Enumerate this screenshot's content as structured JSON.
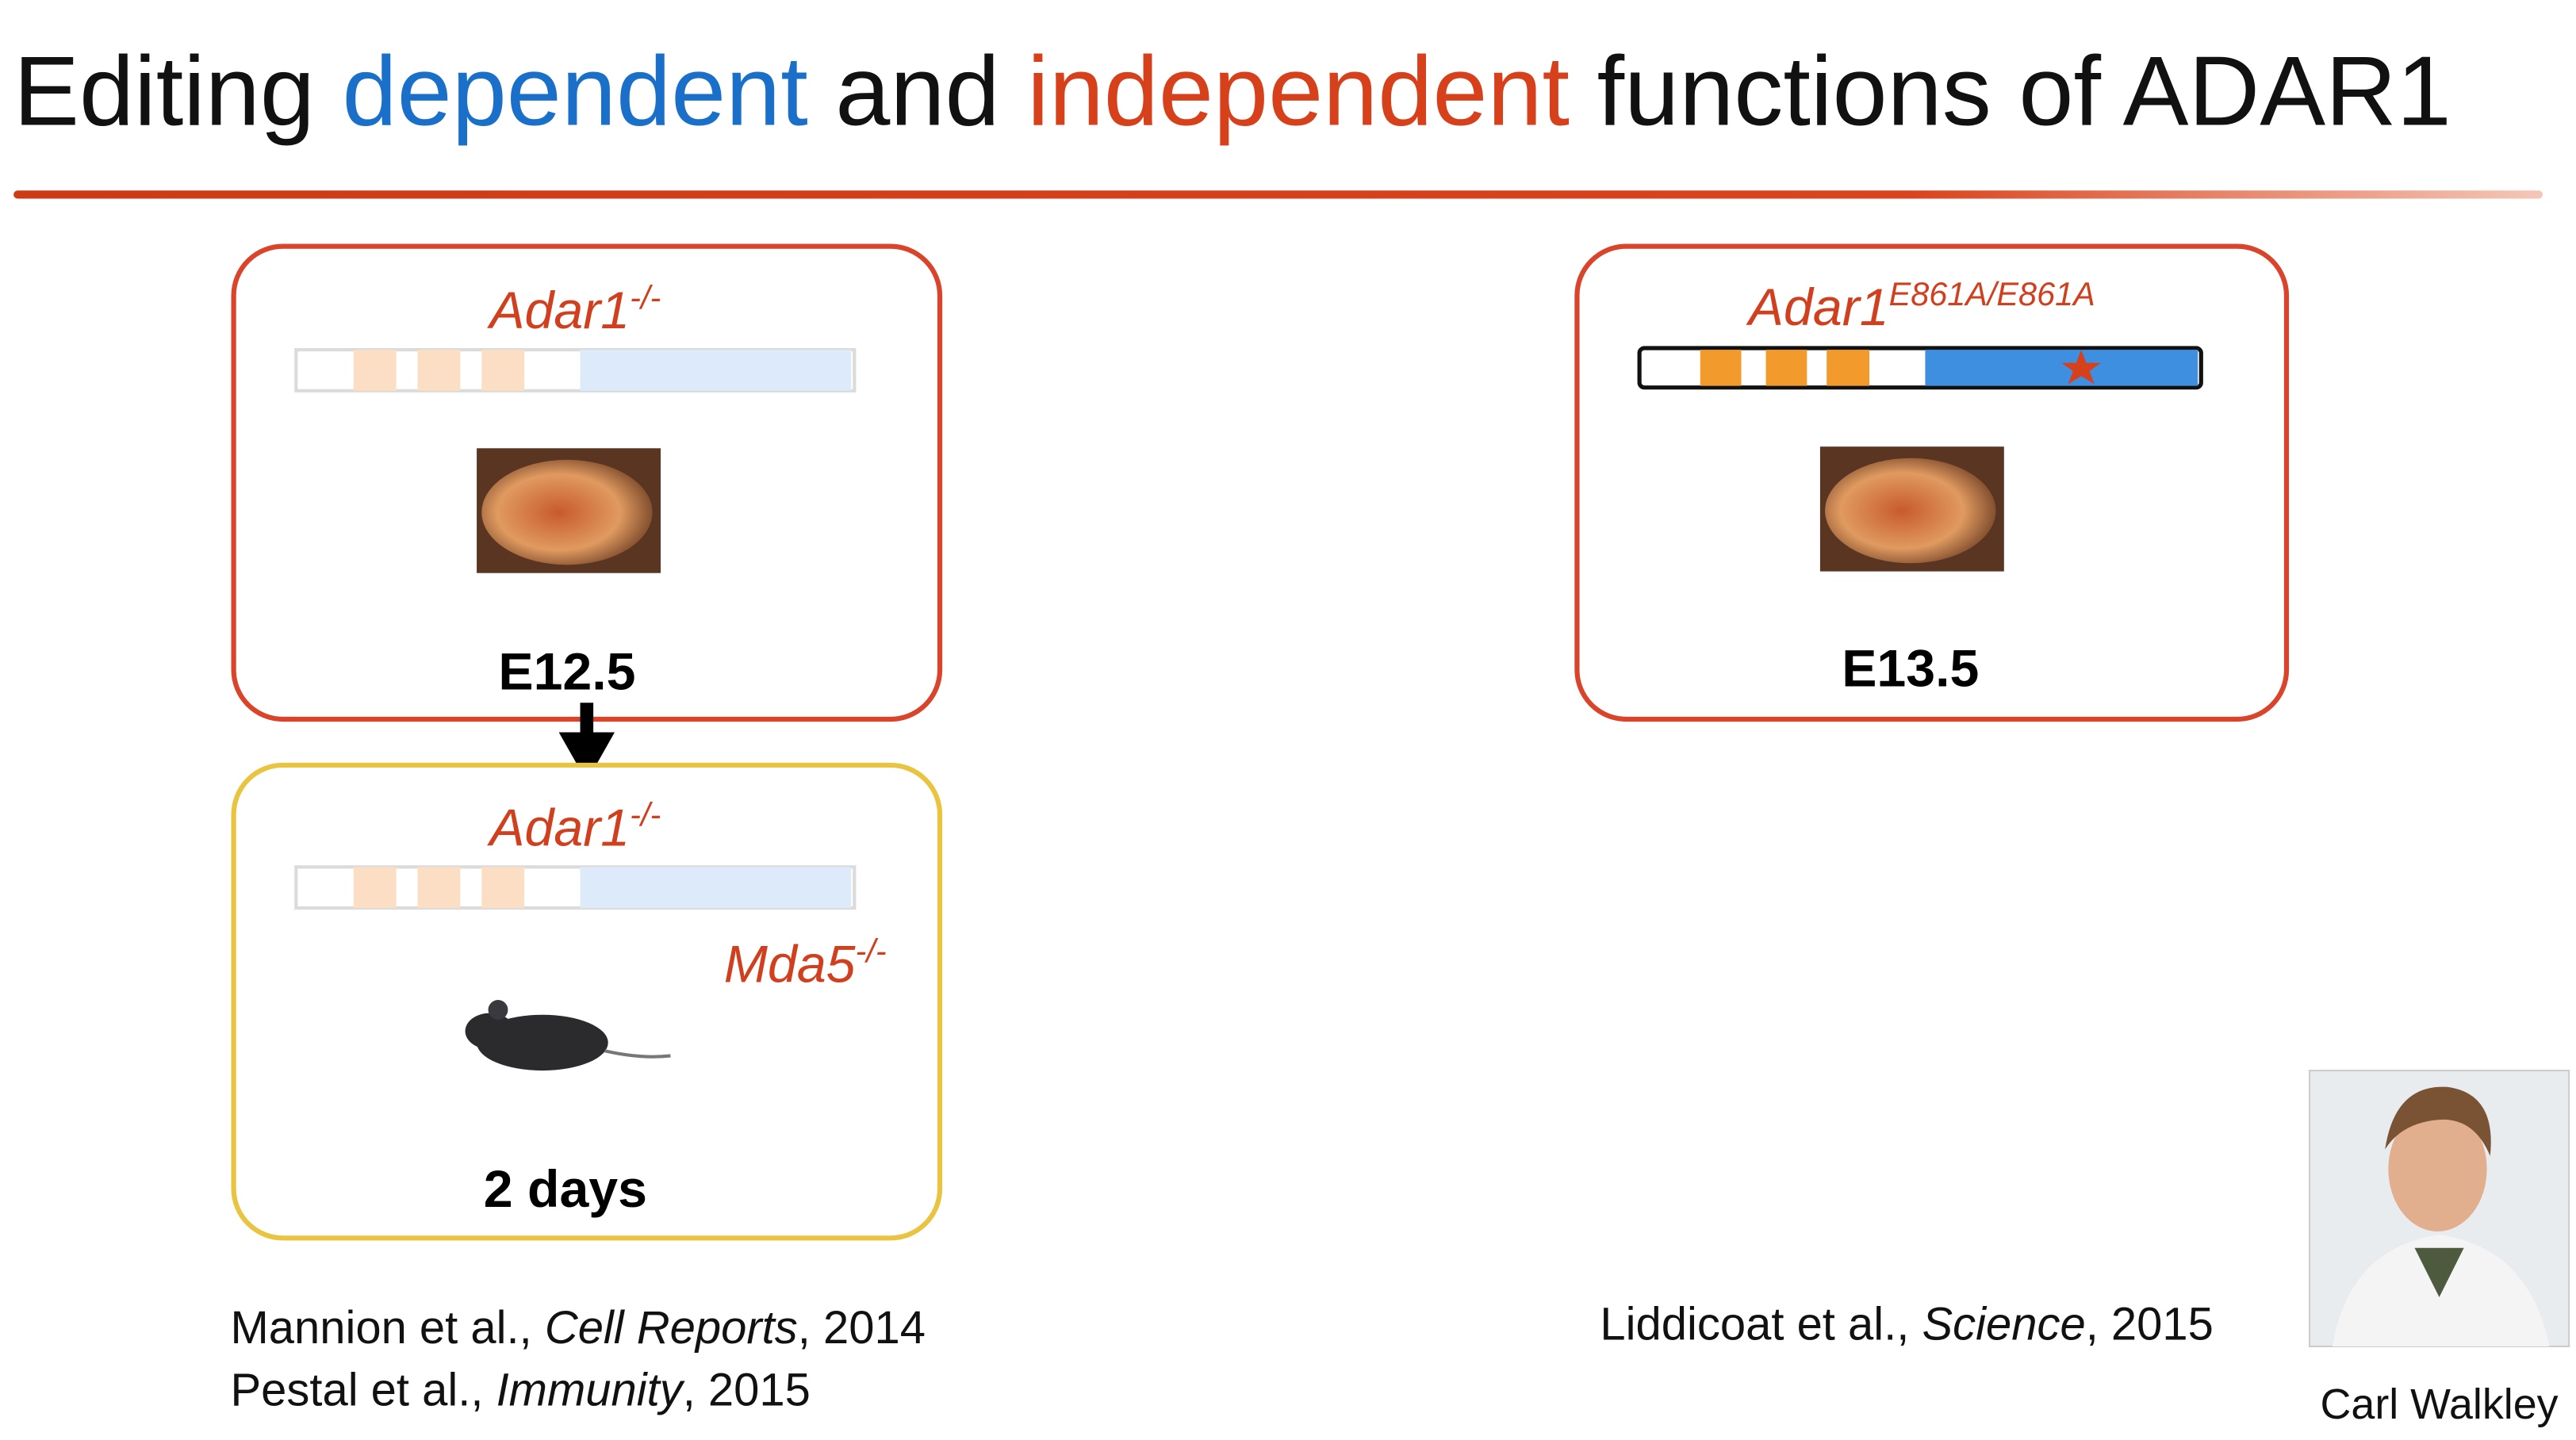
{
  "title": {
    "part1": "Editing ",
    "part2": "dependent",
    "part3": " and ",
    "part4": "independent",
    "part5": " functions of ADAR1"
  },
  "panels": [
    {
      "gene": "Adar1",
      "superscript": "-/-",
      "stage": "E12.5"
    },
    {
      "gene": "Adar1",
      "superscript": "-/-",
      "second_gene": "Mda5",
      "second_superscript": "-/-",
      "stage": "2 days"
    },
    {
      "gene": "Adar1",
      "superscript": "E861A/E861A",
      "stage": "E13.5"
    }
  ],
  "citations_left": [
    {
      "authors": "Mannion et al., ",
      "journal": "Cell Reports",
      "year": ", 2014"
    },
    {
      "authors": "Pestal et al., ",
      "journal": "Immunity",
      "year": ", 2015"
    }
  ],
  "citations_right": [
    {
      "authors": "Liddicoat et al., ",
      "journal": "Science",
      "year": ", 2015"
    }
  ],
  "photo": {
    "caption": "Carl Walkley"
  }
}
